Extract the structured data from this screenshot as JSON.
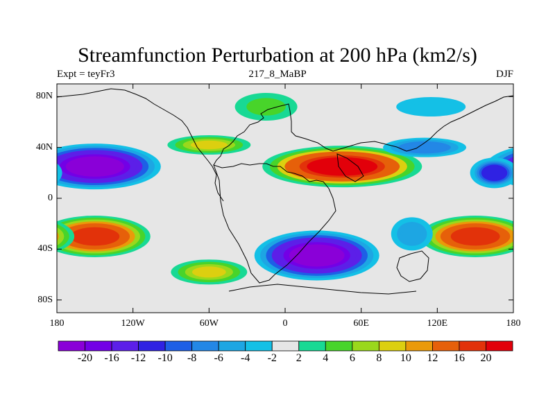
{
  "plot": {
    "title": "Streamfunction Perturbation at 200 hPa (km2/s)",
    "left_label": "Expt = teyFr3",
    "center_label": "217_8_MaBP",
    "right_label": "DJF"
  },
  "axes": {
    "lon_ticks": [
      "180",
      "120W",
      "60W",
      "0",
      "60E",
      "120E",
      "180"
    ],
    "lat_ticks": [
      "80N",
      "40N",
      "0",
      "40S",
      "80S"
    ]
  },
  "colorbar": {
    "labels": [
      "-20",
      "-16",
      "-12",
      "-10",
      "-8",
      "-6",
      "-4",
      "-2",
      "2",
      "4",
      "6",
      "8",
      "10",
      "12",
      "16",
      "20"
    ],
    "colors": [
      "#8a00d8",
      "#7300e6",
      "#5c1fe8",
      "#2f22e3",
      "#1e5fe6",
      "#2387e6",
      "#1da6e3",
      "#14c0e6",
      "#e6e6e6",
      "#18d994",
      "#48d42a",
      "#9ad81c",
      "#dccf10",
      "#ea9a0a",
      "#e6600a",
      "#e2320a",
      "#e2000a"
    ]
  },
  "chart_data": {
    "type": "heatmap",
    "title": "Streamfunction Perturbation at 200 hPa (km2/s)",
    "field": "streamfunction perturbation",
    "level": "200 hPa",
    "units": "km2/s",
    "experiment": "teyFr3",
    "period": "217_8_MaBP",
    "season": "DJF",
    "lon_range": [
      -180,
      180
    ],
    "lat_range": [
      -90,
      90
    ],
    "contour_levels": [
      -20,
      -16,
      -12,
      -10,
      -8,
      -6,
      -4,
      -2,
      2,
      4,
      6,
      8,
      10,
      12,
      16,
      20
    ],
    "features": [
      {
        "sign": "negative",
        "lon": -150,
        "lat": 25,
        "value": -22
      },
      {
        "sign": "positive",
        "lon": 45,
        "lat": 25,
        "value": 22
      },
      {
        "sign": "negative",
        "lon": 25,
        "lat": -45,
        "value": -22
      },
      {
        "sign": "positive",
        "lon": -150,
        "lat": -30,
        "value": 18
      },
      {
        "sign": "positive",
        "lon": 150,
        "lat": -30,
        "value": 18
      },
      {
        "sign": "positive",
        "lon": -60,
        "lat": -58,
        "value": 8
      },
      {
        "sign": "positive",
        "lon": -60,
        "lat": 42,
        "value": 8
      },
      {
        "sign": "positive",
        "lon": -15,
        "lat": 72,
        "value": 5
      },
      {
        "sign": "negative",
        "lon": 110,
        "lat": 40,
        "value": -8
      },
      {
        "sign": "negative",
        "lon": 165,
        "lat": 20,
        "value": -12
      },
      {
        "sign": "negative",
        "lon": 115,
        "lat": 72,
        "value": -4
      },
      {
        "sign": "negative",
        "lon": 100,
        "lat": -28,
        "value": -6
      }
    ]
  }
}
